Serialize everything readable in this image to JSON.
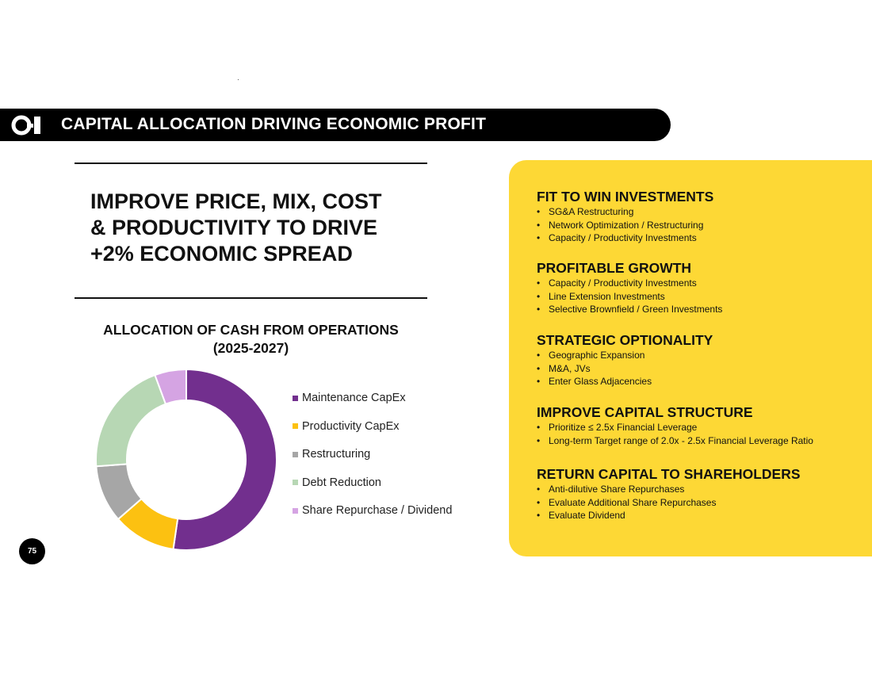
{
  "header": {
    "title": "CAPITAL ALLOCATION DRIVING ECONOMIC PROFIT",
    "logo_icon": "oi-logo-icon"
  },
  "headline": {
    "lines": [
      "IMPROVE PRICE, MIX, COST",
      "& PRODUCTIVITY TO DRIVE",
      "+2% ECONOMIC SPREAD"
    ]
  },
  "chart_data": {
    "type": "pie",
    "style": "donut",
    "title_lines": [
      "ALLOCATION OF CASH FROM OPERATIONS",
      "(2025-2027)"
    ],
    "categories": [
      "Maintenance CapEx",
      "Productivity CapEx",
      "Restructuring",
      "Debt Reduction",
      "Share Repurchase / Dividend"
    ],
    "values": [
      51,
      11,
      10,
      20,
      5.5
    ],
    "colors": [
      "#722f8e",
      "#fcc111",
      "#a6a6a6",
      "#b7d7b4",
      "#d5a4e3"
    ],
    "legend_position": "right",
    "data_labels": false
  },
  "panel": {
    "sections": [
      {
        "title": "FIT TO WIN INVESTMENTS",
        "items": [
          "SG&A Restructuring",
          "Network Optimization / Restructuring",
          "Capacity / Productivity Investments"
        ]
      },
      {
        "title": "PROFITABLE GROWTH",
        "items": [
          "Capacity / Productivity Investments",
          "Line Extension Investments",
          "Selective Brownfield / Green Investments"
        ]
      },
      {
        "title": "STRATEGIC OPTIONALITY",
        "items": [
          "Geographic Expansion",
          "M&A, JVs",
          "Enter Glass Adjacencies"
        ]
      },
      {
        "title": "IMPROVE CAPITAL STRUCTURE",
        "items": [
          "Prioritize  ≤ 2.5x Financial Leverage",
          "Long-term Target range of 2.0x - 2.5x Financial Leverage Ratio"
        ]
      },
      {
        "title": "RETURN CAPITAL TO SHAREHOLDERS",
        "items": [
          "Anti-dilutive Share Repurchases",
          "Evaluate Additional Share Repurchases",
          "Evaluate Dividend"
        ]
      }
    ]
  },
  "footer": {
    "page_number": "75"
  }
}
